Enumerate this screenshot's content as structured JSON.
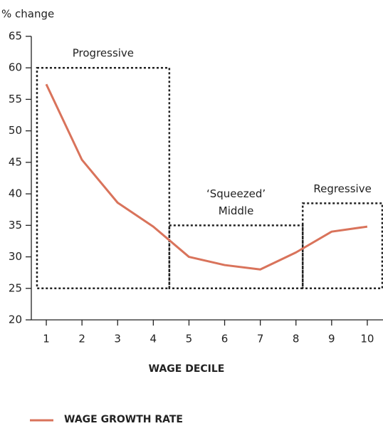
{
  "chart_data": {
    "type": "line",
    "y_label": "% change",
    "x_label": "WAGE DECILE",
    "categories": [
      "1",
      "2",
      "3",
      "4",
      "5",
      "6",
      "7",
      "8",
      "9",
      "10"
    ],
    "series": [
      {
        "name": "WAGE GROWTH RATE",
        "color": "#d9735b",
        "values": [
          57.4,
          45.4,
          38.6,
          34.8,
          30,
          28.7,
          28,
          30.7,
          34,
          34.8
        ]
      }
    ],
    "ylim": [
      20,
      65
    ],
    "yticks": [
      20,
      25,
      30,
      35,
      40,
      45,
      50,
      55,
      60,
      65
    ],
    "annotations": [
      {
        "lines": [
          "Progressive"
        ],
        "xrange": [
          0.74,
          4.45
        ],
        "yrange": [
          25,
          60
        ]
      },
      {
        "lines": [
          "‘Squeezed’",
          "Middle"
        ],
        "xrange": [
          4.45,
          8.19
        ],
        "yrange": [
          25,
          35
        ]
      },
      {
        "lines": [
          "Regressive"
        ],
        "xrange": [
          8.19,
          10.42
        ],
        "yrange": [
          25,
          38.5
        ]
      }
    ]
  }
}
